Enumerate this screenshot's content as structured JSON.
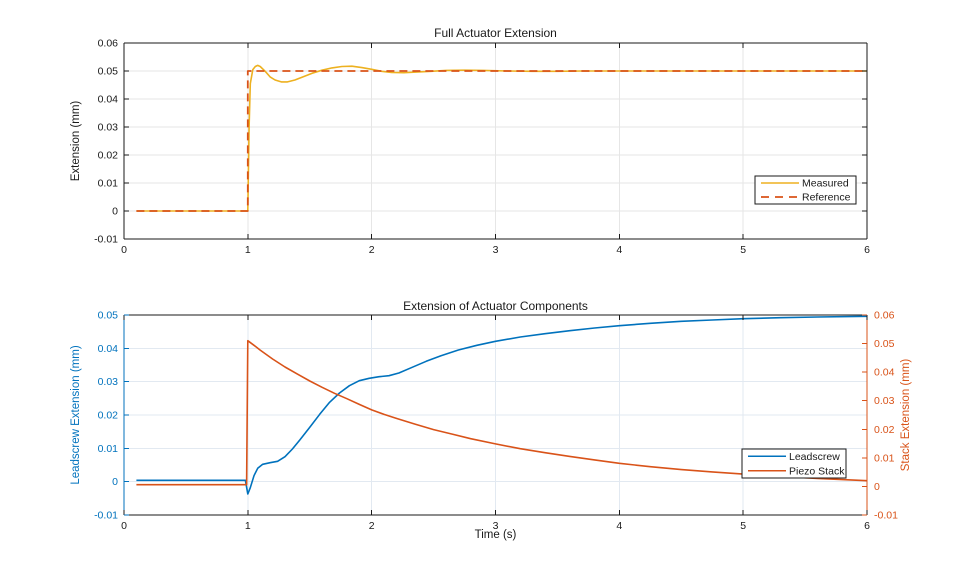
{
  "styles": {
    "background": "#ffffff",
    "axis_color": "#1a1a1a",
    "text_color": "#1a1a1a",
    "grid_color_top": "#e6e6e6",
    "grid_color_bottom": "#e2e9f1",
    "legend_background": "#ffffff",
    "legend_border": "#1a1a1a"
  },
  "chart_data": [
    {
      "id": "top",
      "type": "line",
      "title": "Full Actuator Extension",
      "xlabel": "",
      "ylabel": "Extension (mm)",
      "xlim": [
        0,
        6
      ],
      "ylim": [
        -0.01,
        0.06
      ],
      "xticks": [
        0,
        1,
        2,
        3,
        4,
        5,
        6
      ],
      "yticks": [
        -0.01,
        0,
        0.01,
        0.02,
        0.03,
        0.04,
        0.05,
        0.06
      ],
      "grid": true,
      "legend": {
        "location": "inside-lower-right",
        "entries": [
          "Measured",
          "Reference"
        ]
      },
      "series": [
        {
          "name": "Measured",
          "color": "#EDB120",
          "line": "solid",
          "points": [
            [
              0.1,
              0
            ],
            [
              0.98,
              0
            ],
            [
              1.0,
              0
            ],
            [
              1.01,
              0.03
            ],
            [
              1.02,
              0.0455
            ],
            [
              1.04,
              0.0505
            ],
            [
              1.06,
              0.0516
            ],
            [
              1.08,
              0.052
            ],
            [
              1.1,
              0.0516
            ],
            [
              1.14,
              0.0499
            ],
            [
              1.18,
              0.0479
            ],
            [
              1.22,
              0.0468
            ],
            [
              1.27,
              0.0461
            ],
            [
              1.32,
              0.0461
            ],
            [
              1.38,
              0.0468
            ],
            [
              1.45,
              0.048
            ],
            [
              1.52,
              0.0492
            ],
            [
              1.6,
              0.0503
            ],
            [
              1.68,
              0.0511
            ],
            [
              1.76,
              0.0516
            ],
            [
              1.84,
              0.0517
            ],
            [
              1.92,
              0.0512
            ],
            [
              2.0,
              0.0506
            ],
            [
              2.08,
              0.0499
            ],
            [
              2.16,
              0.0495
            ],
            [
              2.26,
              0.0494
            ],
            [
              2.36,
              0.0496
            ],
            [
              2.48,
              0.0499
            ],
            [
              2.6,
              0.0502
            ],
            [
              2.75,
              0.0503
            ],
            [
              2.9,
              0.0502
            ],
            [
              3.1,
              0.05
            ],
            [
              3.3,
              0.0499
            ],
            [
              3.5,
              0.0499
            ],
            [
              3.7,
              0.05
            ],
            [
              4.0,
              0.05
            ],
            [
              4.5,
              0.05
            ],
            [
              5.0,
              0.05
            ],
            [
              5.5,
              0.05
            ],
            [
              6.0,
              0.05
            ]
          ]
        },
        {
          "name": "Reference",
          "color": "#D95319",
          "line": "dashed",
          "points": [
            [
              0.1,
              0
            ],
            [
              1.0,
              0
            ],
            [
              1.0,
              0.05
            ],
            [
              6.0,
              0.05
            ]
          ]
        }
      ]
    },
    {
      "id": "bottom",
      "type": "line",
      "title": "Extension of Actuator Components",
      "xlabel": "Time (s)",
      "ylabel_left": "Leadscrew Extension (mm)",
      "ylabel_right": "Stack Extension (mm)",
      "axis_colors": {
        "left": "#0072BD",
        "right": "#D95319"
      },
      "xlim": [
        0,
        6
      ],
      "ylim_left": [
        -0.01,
        0.05
      ],
      "ylim_right": [
        -0.01,
        0.06
      ],
      "xticks": [
        0,
        1,
        2,
        3,
        4,
        5,
        6
      ],
      "yticks_left": [
        -0.01,
        0,
        0.01,
        0.02,
        0.03,
        0.04,
        0.05
      ],
      "yticks_right": [
        -0.01,
        0,
        0.01,
        0.02,
        0.03,
        0.04,
        0.05,
        0.06
      ],
      "grid": true,
      "legend": {
        "location": "inside-lower-right",
        "entries": [
          "Leadscrew",
          "Piezo Stack"
        ]
      },
      "series": [
        {
          "name": "Leadscrew",
          "axis": "left",
          "color": "#0072BD",
          "line": "solid",
          "points": [
            [
              0.1,
              0.0004
            ],
            [
              0.5,
              0.0004
            ],
            [
              0.9,
              0.0004
            ],
            [
              0.98,
              0.0004
            ],
            [
              1.0,
              -0.0037
            ],
            [
              1.02,
              -0.0018
            ],
            [
              1.05,
              0.0018
            ],
            [
              1.08,
              0.004
            ],
            [
              1.12,
              0.0052
            ],
            [
              1.18,
              0.0057
            ],
            [
              1.24,
              0.0061
            ],
            [
              1.3,
              0.0075
            ],
            [
              1.36,
              0.0098
            ],
            [
              1.42,
              0.0125
            ],
            [
              1.5,
              0.0163
            ],
            [
              1.58,
              0.0202
            ],
            [
              1.66,
              0.0238
            ],
            [
              1.74,
              0.0266
            ],
            [
              1.82,
              0.0288
            ],
            [
              1.9,
              0.0303
            ],
            [
              1.98,
              0.031
            ],
            [
              2.06,
              0.0315
            ],
            [
              2.14,
              0.0318
            ],
            [
              2.22,
              0.0326
            ],
            [
              2.32,
              0.0342
            ],
            [
              2.44,
              0.0361
            ],
            [
              2.56,
              0.0378
            ],
            [
              2.7,
              0.0395
            ],
            [
              2.85,
              0.0409
            ],
            [
              3.0,
              0.0421
            ],
            [
              3.2,
              0.0434
            ],
            [
              3.4,
              0.0444
            ],
            [
              3.6,
              0.0453
            ],
            [
              3.8,
              0.0461
            ],
            [
              4.0,
              0.0468
            ],
            [
              4.25,
              0.0475
            ],
            [
              4.5,
              0.0481
            ],
            [
              4.75,
              0.0485
            ],
            [
              5.0,
              0.0489
            ],
            [
              5.3,
              0.0492
            ],
            [
              5.6,
              0.0494
            ],
            [
              6.0,
              0.0496
            ]
          ]
        },
        {
          "name": "Piezo Stack",
          "axis": "right",
          "color": "#D95319",
          "line": "solid",
          "points": [
            [
              0.1,
              0.0006
            ],
            [
              0.5,
              0.0006
            ],
            [
              0.9,
              0.0006
            ],
            [
              0.99,
              0.0006
            ],
            [
              1.0,
              0.051
            ],
            [
              1.05,
              0.0494
            ],
            [
              1.1,
              0.0477
            ],
            [
              1.2,
              0.0446
            ],
            [
              1.3,
              0.0418
            ],
            [
              1.4,
              0.0393
            ],
            [
              1.5,
              0.0369
            ],
            [
              1.6,
              0.0347
            ],
            [
              1.7,
              0.0326
            ],
            [
              1.8,
              0.0307
            ],
            [
              1.9,
              0.0287
            ],
            [
              2.0,
              0.0268
            ],
            [
              2.1,
              0.0252
            ],
            [
              2.2,
              0.0238
            ],
            [
              2.35,
              0.0218
            ],
            [
              2.5,
              0.0199
            ],
            [
              2.65,
              0.0183
            ],
            [
              2.8,
              0.0167
            ],
            [
              3.0,
              0.0149
            ],
            [
              3.2,
              0.0132
            ],
            [
              3.4,
              0.0118
            ],
            [
              3.6,
              0.0105
            ],
            [
              3.8,
              0.0093
            ],
            [
              4.0,
              0.0081
            ],
            [
              4.25,
              0.0069
            ],
            [
              4.5,
              0.0059
            ],
            [
              4.75,
              0.0051
            ],
            [
              5.0,
              0.0043
            ],
            [
              5.3,
              0.0035
            ],
            [
              5.6,
              0.0028
            ],
            [
              6.0,
              0.002
            ]
          ]
        }
      ]
    }
  ]
}
